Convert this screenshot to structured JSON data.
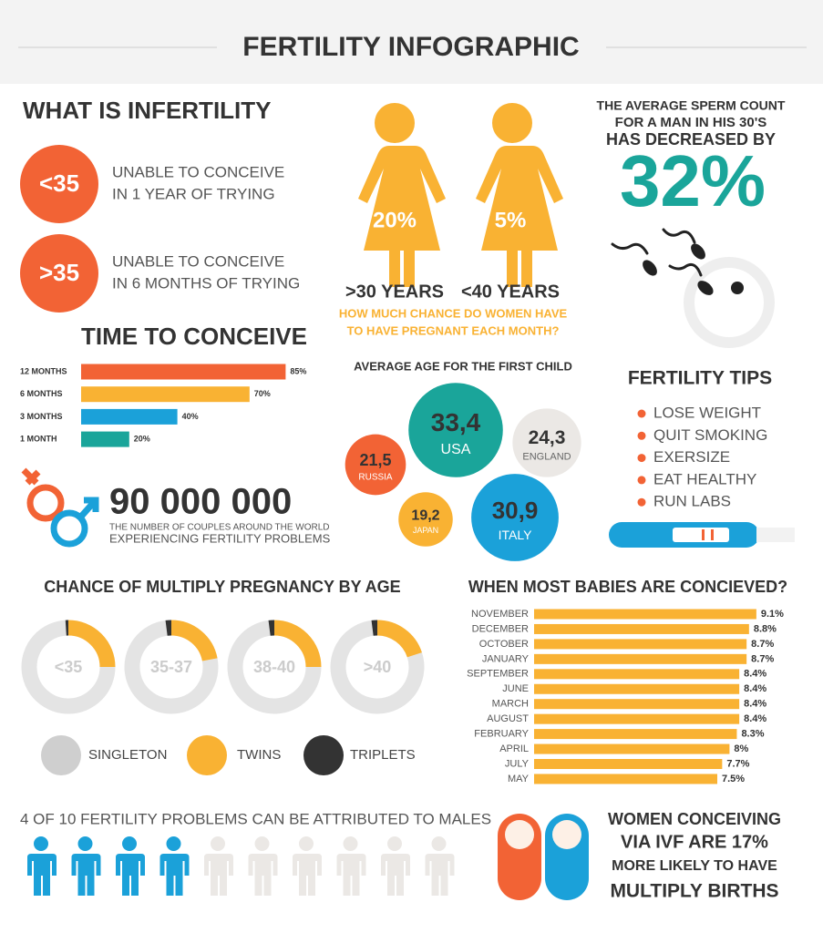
{
  "title": "FERTILITY INFOGRAPHIC",
  "infertility": {
    "heading": "WHAT IS INFERTILITY",
    "items": [
      {
        "badge": "<35",
        "lines": [
          "UNABLE TO CONCEIVE",
          "IN 1 YEAR OF TRYING"
        ]
      },
      {
        "badge": ">35",
        "lines": [
          "UNABLE TO CONCEIVE",
          "IN 6 MONTHS OF TRYING"
        ]
      }
    ]
  },
  "women": {
    "figures": [
      {
        "value": "20%",
        "label": ">30 YEARS"
      },
      {
        "value": "5%",
        "label": "<40 YEARS"
      }
    ],
    "question": [
      "HOW MUCH CHANCE DO WOMEN HAVE",
      "TO HAVE PREGNANT EACH MONTH?"
    ]
  },
  "sperm": {
    "lines": [
      "THE AVERAGE SPERM COUNT",
      "FOR A MAN IN HIS 30'S",
      "HAS DECREASED BY"
    ],
    "value": "32%"
  },
  "couples": {
    "number": "90 000 000",
    "lines": [
      "THE NUMBER OF COUPLES AROUND THE WORLD",
      "EXPERIENCING FERTILITY PROBLEMS"
    ]
  },
  "tips": {
    "heading": "FERTILITY TIPS",
    "items": [
      "LOSE WEIGHT",
      "QUIT SMOKING",
      "EXERSIZE",
      "EAT HEALTHY",
      "RUN LABS"
    ]
  },
  "ivf": {
    "lines": [
      "WOMEN CONCEIVING",
      "VIA IVF ARE 17%",
      "MORE LIKELY TO HAVE",
      "MULTIPLY BIRTHS"
    ]
  },
  "chart_data": [
    {
      "type": "hbar",
      "title": "TIME TO CONCEIVE",
      "categories": [
        "12 MONTHS",
        "6 MONTHS",
        "3 MONTHS",
        "1 MONTH"
      ],
      "values": [
        85,
        70,
        40,
        20
      ],
      "value_labels": [
        "85%",
        "70%",
        "40%",
        "20%"
      ],
      "colors": [
        "#f26335",
        "#f9b233",
        "#1ba1d9",
        "#1aa59a"
      ]
    },
    {
      "type": "bubble",
      "title": "AVERAGE AGE FOR THE FIRST CHILD",
      "categories": [
        "USA",
        "ENGLAND",
        "RUSSIA",
        "JAPAN",
        "ITALY"
      ],
      "values": [
        33.4,
        24.3,
        21.5,
        19.2,
        30.9
      ],
      "value_labels": [
        "33,4",
        "24,3",
        "21,5",
        "19,2",
        "30,9"
      ],
      "colors": [
        "#1aa59a",
        "#ebe8e5",
        "#f26335",
        "#f9b233",
        "#1ba1d9"
      ]
    },
    {
      "type": "donut",
      "title": "CHANCE OF MULTIPLY PREGNANCY BY AGE",
      "categories": [
        "<35",
        "35-37",
        "38-40",
        ">40"
      ],
      "series": [
        {
          "name": "SINGLETON",
          "color": "#e4e4e4",
          "values": [
            74,
            76,
            73,
            78
          ]
        },
        {
          "name": "TWINS",
          "color": "#f9b233",
          "values": [
            25,
            22,
            25,
            20
          ]
        },
        {
          "name": "TRIPLETS",
          "color": "#333333",
          "values": [
            1,
            2,
            2,
            2
          ]
        }
      ]
    },
    {
      "type": "hbar",
      "title": "WHEN MOST BABIES ARE CONCIEVED?",
      "categories": [
        "NOVEMBER",
        "DECEMBER",
        "OCTOBER",
        "JANUARY",
        "SEPTEMBER",
        "JUNE",
        "MARCH",
        "AUGUST",
        "FEBRUARY",
        "APRIL",
        "JULY",
        "MAY"
      ],
      "values": [
        9.1,
        8.8,
        8.7,
        8.7,
        8.4,
        8.4,
        8.4,
        8.4,
        8.3,
        8,
        7.7,
        7.5
      ],
      "value_labels": [
        "9.1%",
        "8.8%",
        "8.7%",
        "8.7%",
        "8.4%",
        "8.4%",
        "8.4%",
        "8.4%",
        "8.3%",
        "8%",
        "7.7%",
        "7.5%"
      ],
      "color": "#f9b233"
    },
    {
      "type": "pictogram",
      "title": "4 OF 10 FERTILITY PROBLEMS CAN BE ATTRIBUTED TO MALES",
      "value": 4,
      "total": 10,
      "colors": [
        "#1ba1d9",
        "#ebe8e5"
      ]
    }
  ]
}
